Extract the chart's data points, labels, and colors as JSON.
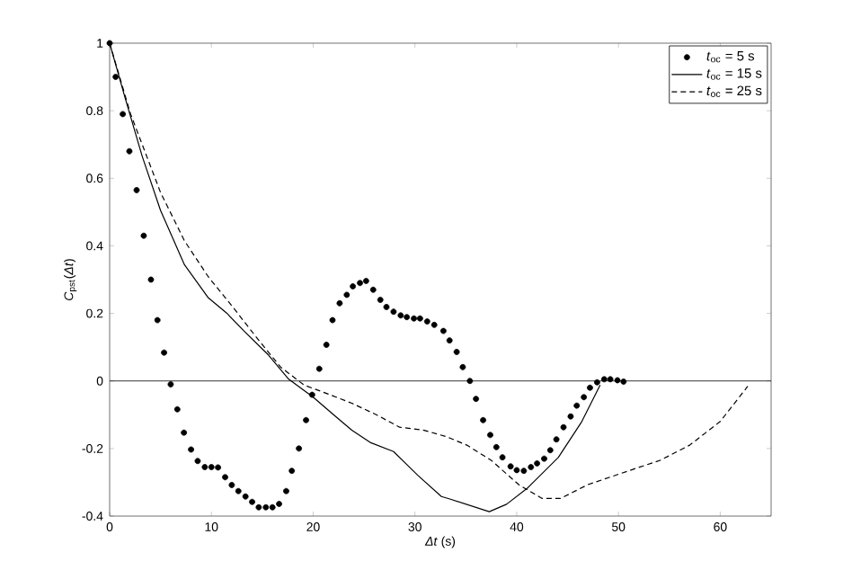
{
  "chart_data": {
    "type": "line",
    "xlabel": "*Δt* (s)",
    "ylabel": "*C*$_{pst}$(*Δt*)",
    "xlim": [
      0,
      65
    ],
    "ylim": [
      -0.4,
      1
    ],
    "xticks": [
      0,
      10,
      20,
      30,
      40,
      50,
      60
    ],
    "yticks": [
      -0.4,
      -0.2,
      0,
      0.2,
      0.4,
      0.6,
      0.8,
      1
    ],
    "grid": false,
    "legend": "top right",
    "ref_lines": [
      {
        "axis": "y",
        "value": 0,
        "color": "#000000",
        "line_style": "solid"
      }
    ],
    "series": [
      {
        "name": "*t*$_{oc}$ = 5 s",
        "type": "scatter",
        "color": "#000000",
        "x": [
          0,
          0.59,
          1.29,
          1.94,
          2.65,
          3.35,
          4.06,
          4.7,
          5.35,
          6.0,
          6.65,
          7.3,
          8.0,
          8.65,
          9.35,
          10.0,
          10.65,
          11.35,
          12.0,
          12.65,
          13.35,
          14.0,
          14.65,
          15.35,
          16.0,
          16.65,
          17.35,
          17.9,
          18.6,
          19.3,
          19.9,
          20.6,
          21.3,
          21.9,
          22.6,
          23.3,
          23.9,
          24.6,
          25.2,
          25.9,
          26.6,
          27.2,
          27.9,
          28.6,
          29.2,
          29.9,
          30.5,
          31.2,
          31.9,
          32.8,
          33.4,
          34.1,
          34.7,
          35.4,
          36.0,
          36.7,
          37.4,
          38.0,
          38.6,
          39.4,
          40.0,
          40.7,
          41.4,
          42.0,
          42.7,
          43.3,
          43.9,
          44.6,
          45.3,
          45.9,
          46.6,
          47.2,
          47.9,
          48.6,
          49.2,
          49.9,
          50.5
        ],
        "values": [
          1,
          0.9,
          0.79,
          0.68,
          0.565,
          0.43,
          0.3,
          0.18,
          0.084,
          -0.01,
          -0.084,
          -0.153,
          -0.203,
          -0.237,
          -0.255,
          -0.255,
          -0.256,
          -0.285,
          -0.308,
          -0.326,
          -0.342,
          -0.358,
          -0.374,
          -0.374,
          -0.374,
          -0.364,
          -0.326,
          -0.266,
          -0.2,
          -0.116,
          -0.041,
          0.036,
          0.107,
          0.18,
          0.23,
          0.255,
          0.28,
          0.29,
          0.296,
          0.27,
          0.24,
          0.219,
          0.205,
          0.194,
          0.189,
          0.185,
          0.185,
          0.176,
          0.166,
          0.148,
          0.12,
          0.086,
          0.041,
          0,
          -0.053,
          -0.116,
          -0.16,
          -0.196,
          -0.226,
          -0.253,
          -0.264,
          -0.266,
          -0.255,
          -0.244,
          -0.23,
          -0.205,
          -0.173,
          -0.137,
          -0.105,
          -0.073,
          -0.048,
          -0.02,
          -0.004,
          0.005,
          0.005,
          0.002,
          -0.002
        ]
      },
      {
        "name": "*t*$_{oc}$ = 15 s",
        "line_style": "solid",
        "color": "#000000",
        "x": [
          0,
          1.5,
          3.2,
          5,
          7.35,
          9.7,
          11.5,
          13.2,
          15.6,
          17.6,
          20,
          22,
          23.8,
          25.6,
          27.9,
          30.3,
          32.6,
          33.5,
          37.3,
          39,
          41.1,
          44.1,
          46.4,
          48.2
        ],
        "values": [
          1,
          0.84,
          0.665,
          0.505,
          0.344,
          0.246,
          0.201,
          0.148,
          0.077,
          0.005,
          -0.048,
          -0.1,
          -0.146,
          -0.182,
          -0.209,
          -0.28,
          -0.342,
          -0.35,
          -0.387,
          -0.365,
          -0.316,
          -0.226,
          -0.12,
          -0.012
        ]
      },
      {
        "name": "*t*$_{oc}$ = 25 s",
        "line_style": "dashed",
        "color": "#000000",
        "x": [
          0,
          2.06,
          5,
          7.35,
          9.7,
          12.1,
          14.4,
          16.8,
          19.1,
          21.5,
          23.8,
          26.2,
          28.5,
          30.9,
          33.1,
          35.1,
          37.5,
          40.2,
          42.5,
          44.3,
          47,
          51.1,
          54.1,
          57,
          60,
          62.7
        ],
        "values": [
          1,
          0.79,
          0.558,
          0.415,
          0.308,
          0.219,
          0.13,
          0.041,
          -0.012,
          -0.039,
          -0.066,
          -0.1,
          -0.137,
          -0.146,
          -0.165,
          -0.19,
          -0.235,
          -0.307,
          -0.348,
          -0.348,
          -0.307,
          -0.265,
          -0.235,
          -0.19,
          -0.12,
          -0.016
        ]
      }
    ]
  }
}
